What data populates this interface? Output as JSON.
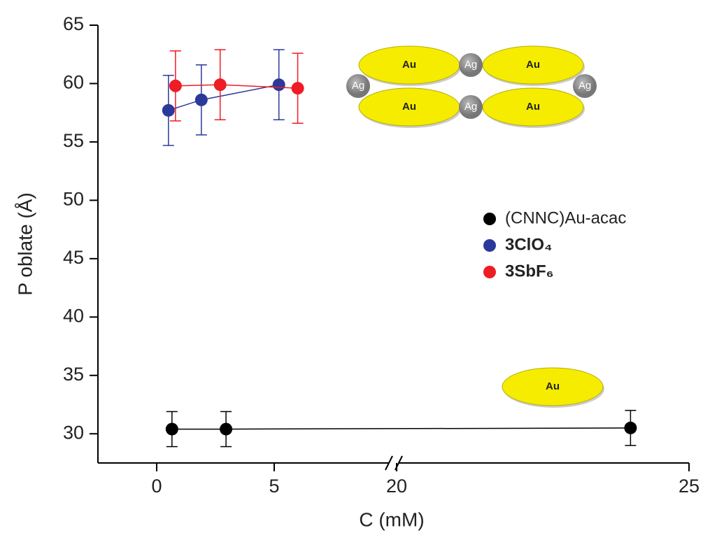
{
  "chart_data": {
    "type": "scatter",
    "xlabel": "C (mM)",
    "ylabel": "P oblate (Å)",
    "ylim": [
      27.5,
      65
    ],
    "yticks": [
      30,
      35,
      40,
      45,
      50,
      55,
      60,
      65
    ],
    "x_segments": [
      {
        "xlim": [
          -2.5,
          10
        ],
        "xticks": [
          0,
          5
        ]
      },
      {
        "xlim": [
          20,
          25
        ],
        "xticks": [
          20,
          25
        ]
      }
    ],
    "legend": "center right",
    "series": [
      {
        "name": "(CNNC)Au-acac",
        "color": "#000000",
        "x": [
          0.65,
          2.95,
          24.0
        ],
        "values": [
          30.4,
          30.4,
          30.5
        ],
        "errors": [
          1.5,
          1.5,
          1.5
        ]
      },
      {
        "name": "3ClO₄",
        "color": "#2b3a9a",
        "x": [
          0.5,
          1.9,
          5.2
        ],
        "values": [
          57.7,
          58.6,
          59.9
        ],
        "errors": [
          3,
          3,
          3
        ]
      },
      {
        "name": "3SbF₆",
        "color": "#ee1c25",
        "x": [
          0.8,
          2.7,
          6.0
        ],
        "values": [
          59.8,
          59.9,
          59.6
        ],
        "errors": [
          3,
          3,
          3
        ]
      }
    ],
    "insets": [
      {
        "labels": [
          "Au",
          "Au",
          "Au",
          "Au",
          "Ag",
          "Ag",
          "Ag",
          "Ag"
        ]
      },
      {
        "labels": [
          "Au"
        ]
      }
    ]
  }
}
